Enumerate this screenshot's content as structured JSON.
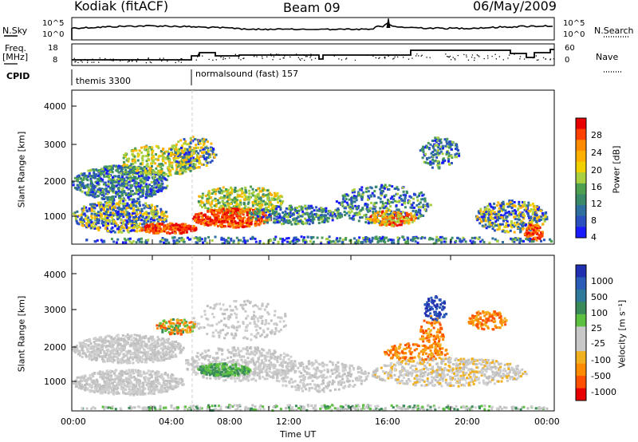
{
  "header": {
    "radar": "Kodiak (fitACF)",
    "beam": "Beam 09",
    "date": "06/May/2009"
  },
  "nsky_panel": {
    "left_label": "N.Sky",
    "right_label": "N.Search",
    "left_ticks": [
      "10^5",
      "10^0"
    ],
    "right_ticks": [
      "10^5",
      "10^0"
    ]
  },
  "freq_panel": {
    "left_label_line1": "Freq.",
    "left_label_line2": "[MHz]",
    "right_label": "Nave",
    "left_ticks": [
      "18",
      "8"
    ],
    "right_ticks": [
      "60",
      "0"
    ]
  },
  "cpid": {
    "label": "CPID",
    "modes": [
      {
        "name": "themis 3300",
        "start": "00:00"
      },
      {
        "name": "normalsound (fast) 157",
        "start": "06:00"
      }
    ]
  },
  "chart_data": [
    {
      "type": "heatmap",
      "name": "power",
      "ylabel": "Slant Range [km]",
      "ylim": [
        180,
        4600
      ],
      "yticks": [
        "4000",
        "3000",
        "2000",
        "1000"
      ],
      "colorbar": {
        "label": "Power [dB]",
        "ticks": [
          "28",
          "24",
          "20",
          "16",
          "12",
          "8",
          "4"
        ],
        "colors": [
          "#e80000",
          "#ff4000",
          "#ff8c00",
          "#ffb000",
          "#f0d000",
          "#a8d040",
          "#4ca050",
          "#3a8a6a",
          "#2f6fa0",
          "#2a50c0",
          "#1a1aff"
        ]
      }
    },
    {
      "type": "heatmap",
      "name": "velocity",
      "ylabel": "Slant Range [km]",
      "xlabel": "Time UT",
      "ylim": [
        180,
        4600
      ],
      "yticks": [
        "4000",
        "3000",
        "2000",
        "1000"
      ],
      "xticks": [
        "00:00",
        "04:00",
        "08:00",
        "12:00",
        "16:00",
        "20:00",
        "00:00"
      ],
      "colorbar": {
        "label": "Velocity [m s⁻¹]",
        "ticks": [
          "1000",
          "500",
          "100",
          "25",
          "-25",
          "-100",
          "-500",
          "-1000"
        ],
        "colors": [
          "#2030b0",
          "#2b5db8",
          "#2f7a9a",
          "#3a8a5a",
          "#5cc040",
          "#c8c8c8",
          "#c8c8c8",
          "#f0b020",
          "#ff8c00",
          "#ff5000",
          "#e80000"
        ]
      }
    }
  ]
}
